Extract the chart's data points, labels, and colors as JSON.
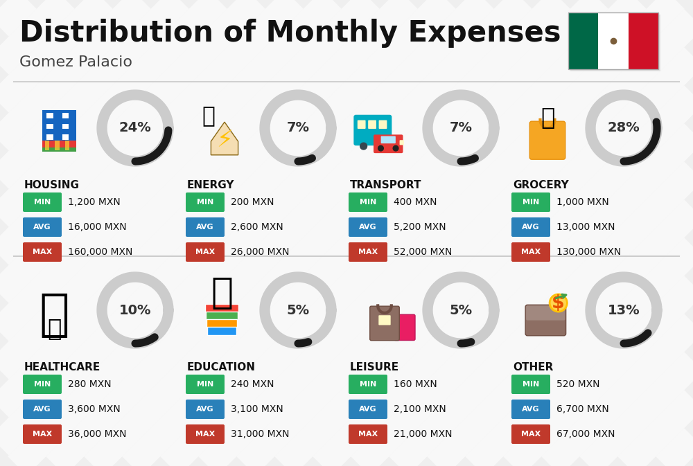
{
  "title": "Distribution of Monthly Expenses",
  "subtitle": "Gomez Palacio",
  "bg_color": "#efefef",
  "categories": [
    {
      "name": "HOUSING",
      "percent": 24,
      "min_val": "1,200 MXN",
      "avg_val": "16,000 MXN",
      "max_val": "160,000 MXN",
      "row": 0,
      "col": 0,
      "icon_color": "#2196F3"
    },
    {
      "name": "ENERGY",
      "percent": 7,
      "min_val": "200 MXN",
      "avg_val": "2,600 MXN",
      "max_val": "26,000 MXN",
      "row": 0,
      "col": 1,
      "icon_color": "#FF9800"
    },
    {
      "name": "TRANSPORT",
      "percent": 7,
      "min_val": "400 MXN",
      "avg_val": "5,200 MXN",
      "max_val": "52,000 MXN",
      "row": 0,
      "col": 2,
      "icon_color": "#00BCD4"
    },
    {
      "name": "GROCERY",
      "percent": 28,
      "min_val": "1,000 MXN",
      "avg_val": "13,000 MXN",
      "max_val": "130,000 MXN",
      "row": 0,
      "col": 3,
      "icon_color": "#FF9800"
    },
    {
      "name": "HEALTHCARE",
      "percent": 10,
      "min_val": "280 MXN",
      "avg_val": "3,600 MXN",
      "max_val": "36,000 MXN",
      "row": 1,
      "col": 0,
      "icon_color": "#E91E63"
    },
    {
      "name": "EDUCATION",
      "percent": 5,
      "min_val": "240 MXN",
      "avg_val": "3,100 MXN",
      "max_val": "31,000 MXN",
      "row": 1,
      "col": 1,
      "icon_color": "#9C27B0"
    },
    {
      "name": "LEISURE",
      "percent": 5,
      "min_val": "160 MXN",
      "avg_val": "2,100 MXN",
      "max_val": "21,000 MXN",
      "row": 1,
      "col": 2,
      "icon_color": "#E91E63"
    },
    {
      "name": "OTHER",
      "percent": 13,
      "min_val": "520 MXN",
      "avg_val": "6,700 MXN",
      "max_val": "67,000 MXN",
      "row": 1,
      "col": 3,
      "icon_color": "#795548"
    }
  ],
  "min_color": "#27AE60",
  "avg_color": "#2980B9",
  "max_color": "#C0392B",
  "arc_active_color": "#1a1a1a",
  "arc_bg_color": "#cccccc",
  "title_fontsize": 30,
  "subtitle_fontsize": 16,
  "stripe_color": "#e8e8e8",
  "flag_green": "#006847",
  "flag_white": "#FFFFFF",
  "flag_red": "#CE1126"
}
